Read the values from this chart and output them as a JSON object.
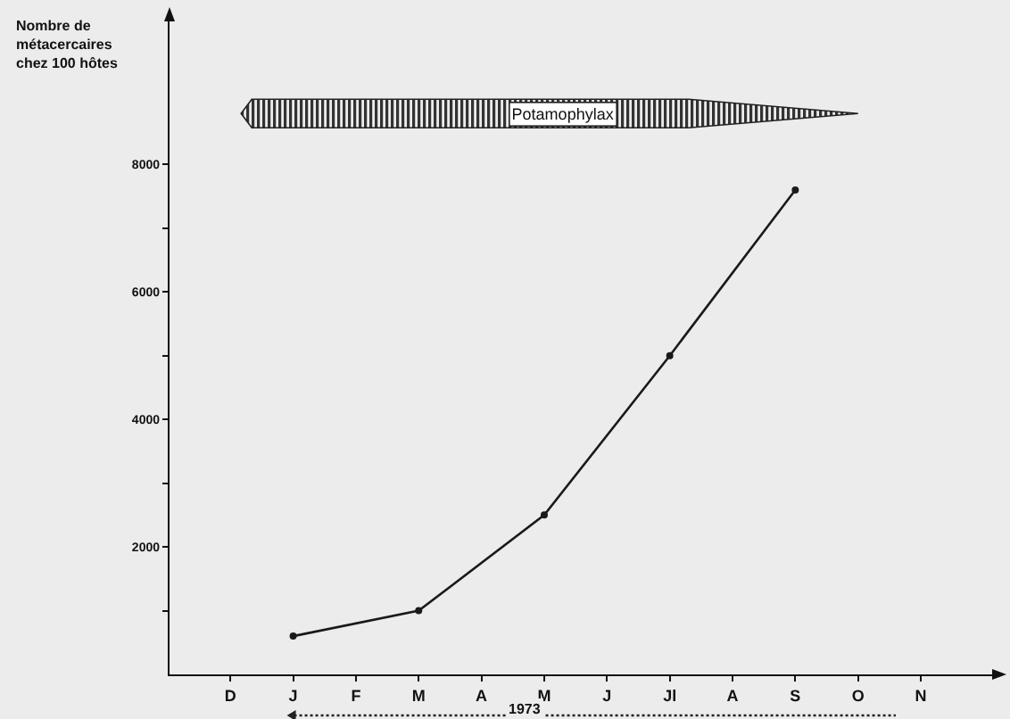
{
  "chart_data": {
    "type": "line",
    "ylabel": "Nombre de\nmétacercaires\nchez 100 hôtes",
    "categories": [
      "D",
      "J",
      "F",
      "M",
      "A",
      "M",
      "J",
      "Jl",
      "A",
      "S",
      "O",
      "N"
    ],
    "series": [
      {
        "color": "#1a1a1a",
        "values": [
          null,
          600,
          null,
          1000,
          null,
          2500,
          null,
          5000,
          null,
          7600,
          null,
          null
        ]
      }
    ],
    "ylim": [
      0,
      10300
    ],
    "yticks": [
      {
        "value": 1000,
        "label": null
      },
      2000,
      {
        "value": 3000,
        "label": null
      },
      4000,
      {
        "value": 5000,
        "label": null
      },
      6000,
      {
        "value": 7000,
        "label": null
      },
      8000
    ],
    "annotations": [
      "Potamophylax",
      "1973"
    ],
    "marker": "circle",
    "line_style": "solid",
    "grid": false,
    "legend": false
  }
}
